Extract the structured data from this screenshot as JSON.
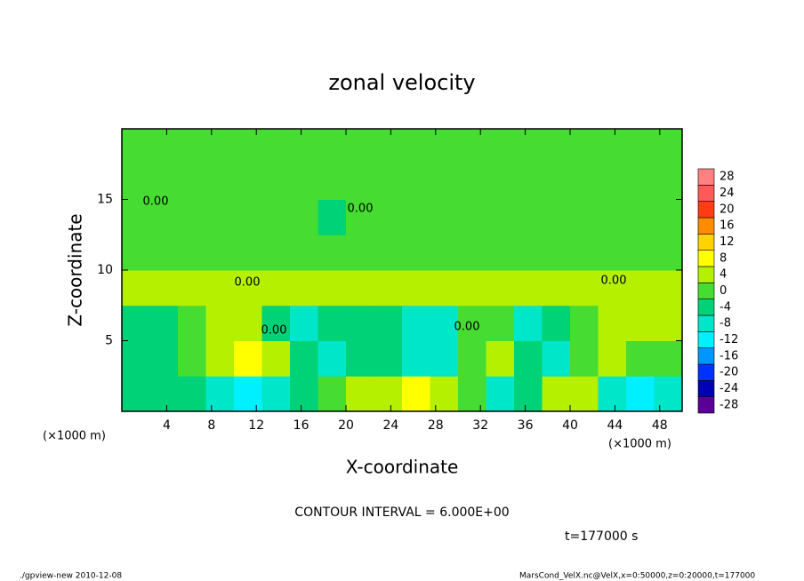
{
  "chart_data": {
    "type": "contour",
    "title": "zonal velocity",
    "x_label": "X-coordinate",
    "y_label": "Z-coordinate",
    "x_unit": "(×1000 m)",
    "x_unit_right": "(×1000 m)",
    "xlim": [
      0,
      50
    ],
    "xticks": [
      4,
      8,
      12,
      16,
      20,
      24,
      28,
      32,
      36,
      40,
      44,
      48
    ],
    "ylim": [
      0,
      20
    ],
    "yticks": [
      5,
      10,
      15
    ],
    "x": [
      1.25,
      3.75,
      6.25,
      8.75,
      11.25,
      13.75,
      16.25,
      18.75,
      21.25,
      23.75,
      26.25,
      28.75,
      31.25,
      33.75,
      36.25,
      38.75,
      41.25,
      43.75,
      46.25,
      48.75
    ],
    "y": [
      1.25,
      3.75,
      6.25,
      8.75,
      11.25,
      13.75,
      16.25,
      18.75
    ],
    "z": [
      [
        -2,
        -3,
        -4,
        -8,
        -10,
        -6,
        -2,
        2,
        4,
        6,
        7,
        6,
        0,
        -6,
        -4,
        6,
        4,
        -6,
        -10,
        -8
      ],
      [
        -2,
        -4,
        2,
        6,
        8,
        6,
        -2,
        -6,
        -4,
        -4,
        -6,
        -6,
        0,
        4,
        -4,
        -6,
        2,
        4,
        2,
        0
      ],
      [
        -2,
        -3,
        0,
        3,
        3,
        -4,
        -6,
        -4,
        -4,
        -2,
        -8,
        -6,
        2,
        2,
        -6,
        -4,
        2,
        4,
        5,
        3
      ],
      [
        3,
        3,
        3,
        3,
        3,
        3,
        3,
        3,
        3,
        3,
        3,
        3,
        3,
        3,
        3,
        3,
        3,
        3,
        3,
        3
      ],
      [
        1,
        1,
        0,
        0,
        0,
        -1,
        0,
        1,
        1,
        0,
        0,
        0,
        0,
        0,
        1,
        1,
        1,
        0,
        -1,
        0
      ],
      [
        0,
        1,
        1,
        0,
        0,
        0,
        -1,
        -2,
        0,
        0,
        1,
        1,
        0,
        0,
        0,
        0,
        0,
        0,
        0,
        0
      ],
      [
        1,
        1,
        0,
        0,
        0,
        0,
        0,
        0,
        0,
        0,
        0,
        0,
        0,
        0,
        0,
        0,
        0,
        0,
        0,
        0
      ],
      [
        -1,
        0,
        0,
        0,
        0,
        0,
        0,
        0,
        0,
        0,
        0,
        0,
        0,
        0,
        0,
        0,
        0,
        0,
        0,
        0
      ]
    ],
    "levels": [
      -28,
      -24,
      -20,
      -16,
      -12,
      -8,
      -4,
      0,
      4,
      8,
      12,
      16,
      20,
      24,
      28
    ],
    "level_colors": [
      "#5a0096",
      "#0000b4",
      "#0032ff",
      "#0096ff",
      "#00f0ff",
      "#00e6c8",
      "#00d278",
      "#46dc32",
      "#b4f000",
      "#ffff00",
      "#ffd200",
      "#ff8c00",
      "#ff3c14",
      "#ff5a5a",
      "#ff8080"
    ],
    "contour_labels": [
      "0.00",
      "0.00",
      "0.00",
      "0.00",
      "0.00",
      "0.00"
    ],
    "contour_interval": "CONTOUR INTERVAL = 6.000E+00",
    "time_label": "t=177000 s",
    "footer_left": "./gpview-new  2010-12-08",
    "footer_right": "MarsCond_VelX.nc@VelX,x=0:50000,z=0:20000,t=177000"
  }
}
